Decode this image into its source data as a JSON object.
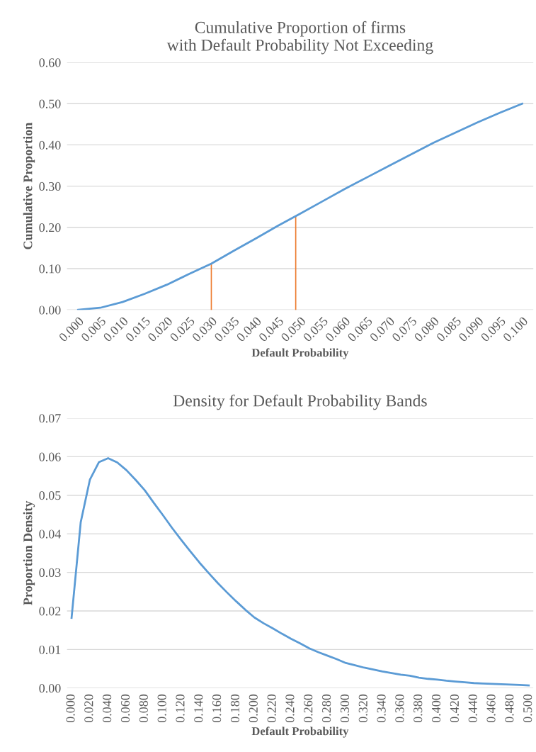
{
  "chart_data": [
    {
      "type": "line",
      "title": "Cumulative Proportion of firms\nwith Default Probability Not Exceeding",
      "xlabel": "Default Probability",
      "ylabel": "Cumulative Proportion",
      "series": [
        {
          "color": "#5b9bd5",
          "x": [
            0.0,
            0.005,
            0.01,
            0.015,
            0.02,
            0.025,
            0.03,
            0.035,
            0.04,
            0.045,
            0.05,
            0.055,
            0.06,
            0.065,
            0.07,
            0.075,
            0.08,
            0.085,
            0.09,
            0.095,
            0.1
          ],
          "values": [
            0.0,
            0.005,
            0.019,
            0.039,
            0.061,
            0.087,
            0.112,
            0.143,
            0.173,
            0.204,
            0.233,
            0.263,
            0.293,
            0.321,
            0.349,
            0.377,
            0.405,
            0.43,
            0.455,
            0.478,
            0.5
          ]
        },
        {
          "color": "#ed7d31",
          "x": [
            0.03,
            0.03
          ],
          "values": [
            0.0,
            0.11
          ]
        },
        {
          "color": "#ed7d31",
          "x": [
            0.049,
            0.049
          ],
          "values": [
            0.0,
            0.225
          ]
        }
      ],
      "xlim": [
        -0.0025,
        0.1025
      ],
      "xticks": [
        {
          "value": 0.0,
          "label": "0.000"
        },
        {
          "value": 0.005,
          "label": "0.005"
        },
        {
          "value": 0.01,
          "label": "0.010"
        },
        {
          "value": 0.015,
          "label": "0.015"
        },
        {
          "value": 0.02,
          "label": "0.020"
        },
        {
          "value": 0.025,
          "label": "0.025"
        },
        {
          "value": 0.03,
          "label": "0.030"
        },
        {
          "value": 0.035,
          "label": "0.035"
        },
        {
          "value": 0.04,
          "label": "0.040"
        },
        {
          "value": 0.045,
          "label": "0.045"
        },
        {
          "value": 0.05,
          "label": "0.050"
        },
        {
          "value": 0.055,
          "label": "0.055"
        },
        {
          "value": 0.06,
          "label": "0.060"
        },
        {
          "value": 0.065,
          "label": "0.065"
        },
        {
          "value": 0.07,
          "label": "0.070"
        },
        {
          "value": 0.075,
          "label": "0.075"
        },
        {
          "value": 0.08,
          "label": "0.080"
        },
        {
          "value": 0.085,
          "label": "0.085"
        },
        {
          "value": 0.09,
          "label": "0.090"
        },
        {
          "value": 0.095,
          "label": "0.095"
        },
        {
          "value": 0.1,
          "label": "0.100"
        }
      ],
      "ylim": [
        0,
        0.6
      ],
      "yticks": [
        {
          "value": 0.0,
          "label": "0.00"
        },
        {
          "value": 0.1,
          "label": "0.10"
        },
        {
          "value": 0.2,
          "label": "0.20"
        },
        {
          "value": 0.3,
          "label": "0.30"
        },
        {
          "value": 0.4,
          "label": "0.40"
        },
        {
          "value": 0.5,
          "label": "0.50"
        },
        {
          "value": 0.6,
          "label": "0.60"
        }
      ],
      "grid": "y",
      "legend": false,
      "marker": "none",
      "line_style": "solid"
    },
    {
      "type": "line",
      "title": "Density for Default Probability Bands",
      "xlabel": "Default Probability",
      "ylabel": "Proportion Density",
      "series": [
        {
          "color": "#5b9bd5",
          "x": [
            0.0,
            0.01,
            0.02,
            0.03,
            0.04,
            0.05,
            0.06,
            0.07,
            0.08,
            0.09,
            0.1,
            0.11,
            0.12,
            0.13,
            0.14,
            0.15,
            0.16,
            0.17,
            0.18,
            0.19,
            0.2,
            0.21,
            0.22,
            0.23,
            0.24,
            0.25,
            0.26,
            0.27,
            0.28,
            0.29,
            0.3,
            0.31,
            0.32,
            0.33,
            0.34,
            0.35,
            0.36,
            0.37,
            0.38,
            0.39,
            0.4,
            0.41,
            0.42,
            0.43,
            0.44,
            0.45,
            0.46,
            0.47,
            0.48,
            0.49,
            0.5
          ],
          "values": [
            0.0182,
            0.043,
            0.054,
            0.0586,
            0.0596,
            0.0585,
            0.0565,
            0.054,
            0.0513,
            0.048,
            0.0448,
            0.0415,
            0.0384,
            0.0354,
            0.0325,
            0.0298,
            0.0272,
            0.0248,
            0.0225,
            0.0203,
            0.0183,
            0.0168,
            0.0155,
            0.0141,
            0.0128,
            0.0116,
            0.0103,
            0.0093,
            0.0084,
            0.0075,
            0.0065,
            0.0059,
            0.0053,
            0.0048,
            0.0043,
            0.0039,
            0.0035,
            0.0032,
            0.0027,
            0.0024,
            0.0022,
            0.0019,
            0.0017,
            0.0015,
            0.0013,
            0.0012,
            0.0011,
            0.001,
            0.0009,
            0.0008,
            0.0007
          ]
        }
      ],
      "xlim": [
        -0.005,
        0.505
      ],
      "xticks": [
        {
          "value": 0.0,
          "label": "0.000"
        },
        {
          "value": 0.02,
          "label": "0.020"
        },
        {
          "value": 0.04,
          "label": "0.040"
        },
        {
          "value": 0.06,
          "label": "0.060"
        },
        {
          "value": 0.08,
          "label": "0.080"
        },
        {
          "value": 0.1,
          "label": "0.100"
        },
        {
          "value": 0.12,
          "label": "0.120"
        },
        {
          "value": 0.14,
          "label": "0.140"
        },
        {
          "value": 0.16,
          "label": "0.160"
        },
        {
          "value": 0.18,
          "label": "0.180"
        },
        {
          "value": 0.2,
          "label": "0.200"
        },
        {
          "value": 0.22,
          "label": "0.220"
        },
        {
          "value": 0.24,
          "label": "0.240"
        },
        {
          "value": 0.26,
          "label": "0.260"
        },
        {
          "value": 0.28,
          "label": "0.280"
        },
        {
          "value": 0.3,
          "label": "0.300"
        },
        {
          "value": 0.32,
          "label": "0.320"
        },
        {
          "value": 0.34,
          "label": "0.340"
        },
        {
          "value": 0.36,
          "label": "0.360"
        },
        {
          "value": 0.38,
          "label": "0.380"
        },
        {
          "value": 0.4,
          "label": "0.400"
        },
        {
          "value": 0.42,
          "label": "0.420"
        },
        {
          "value": 0.44,
          "label": "0.440"
        },
        {
          "value": 0.46,
          "label": "0.460"
        },
        {
          "value": 0.48,
          "label": "0.480"
        },
        {
          "value": 0.5,
          "label": "0.500"
        }
      ],
      "ylim": [
        0,
        0.07
      ],
      "yticks": [
        {
          "value": 0.0,
          "label": "0.00"
        },
        {
          "value": 0.01,
          "label": "0.01"
        },
        {
          "value": 0.02,
          "label": "0.02"
        },
        {
          "value": 0.03,
          "label": "0.03"
        },
        {
          "value": 0.04,
          "label": "0.04"
        },
        {
          "value": 0.05,
          "label": "0.05"
        },
        {
          "value": 0.06,
          "label": "0.06"
        },
        {
          "value": 0.07,
          "label": "0.07"
        }
      ],
      "grid": "y",
      "legend": false,
      "marker": "none",
      "line_style": "solid"
    }
  ]
}
